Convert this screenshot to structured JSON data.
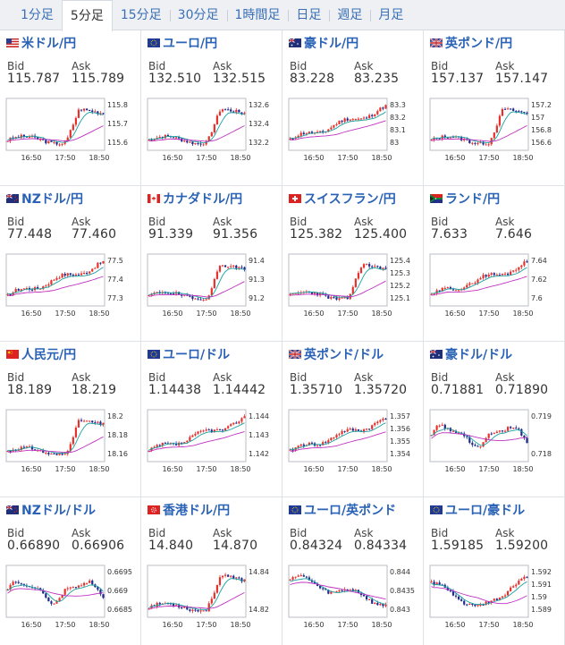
{
  "tabs": [
    {
      "label": "1分足"
    },
    {
      "label": "5分足"
    },
    {
      "label": "15分足"
    },
    {
      "label": "30分足"
    },
    {
      "label": "1時間足"
    },
    {
      "label": "日足"
    },
    {
      "label": "週足"
    },
    {
      "label": "月足"
    }
  ],
  "active_tab": "5分足",
  "labels": {
    "bid": "Bid",
    "ask": "Ask"
  },
  "x_ticks": [
    "16:50",
    "17:50",
    "18:50"
  ],
  "colors": {
    "up": "#e8312c",
    "down": "#1e2a8c",
    "ma_fast": "#1aa0a0",
    "ma_slow": "#c030c0",
    "title": "#2a62b5"
  },
  "pairs": [
    {
      "name": "米ドル/円",
      "flag": "us",
      "bid": "115.787",
      "ask": "115.789",
      "yticks": [
        "115.8",
        "115.7",
        "115.6"
      ],
      "shape": "rise_late",
      "seed": 3
    },
    {
      "name": "ユーロ/円",
      "flag": "eu",
      "bid": "132.510",
      "ask": "132.515",
      "yticks": [
        "132.6",
        "132.4",
        "132.2"
      ],
      "shape": "rise_late",
      "seed": 7
    },
    {
      "name": "豪ドル/円",
      "flag": "au",
      "bid": "83.228",
      "ask": "83.235",
      "yticks": [
        "83.3",
        "83.2",
        "83.1",
        "83"
      ],
      "shape": "steady_rise",
      "seed": 11
    },
    {
      "name": "英ポンド/円",
      "flag": "gb",
      "bid": "157.137",
      "ask": "157.147",
      "yticks": [
        "157.2",
        "157",
        "156.8",
        "156.6"
      ],
      "shape": "rise_late",
      "seed": 13
    },
    {
      "name": "NZドル/円",
      "flag": "nz",
      "bid": "77.448",
      "ask": "77.460",
      "yticks": [
        "77.5",
        "77.4",
        "77.3"
      ],
      "shape": "steady_rise",
      "seed": 17
    },
    {
      "name": "カナダドル/円",
      "flag": "ca",
      "bid": "91.339",
      "ask": "91.356",
      "yticks": [
        "91.4",
        "91.3",
        "91.2"
      ],
      "shape": "rise_late",
      "seed": 19
    },
    {
      "name": "スイスフラン/円",
      "flag": "ch",
      "bid": "125.382",
      "ask": "125.400",
      "yticks": [
        "125.4",
        "125.3",
        "125.2",
        "125.1"
      ],
      "shape": "rise_late",
      "seed": 23
    },
    {
      "name": "ランド/円",
      "flag": "za",
      "bid": "7.633",
      "ask": "7.646",
      "yticks": [
        "7.64",
        "7.62",
        "7.6"
      ],
      "shape": "steady_rise",
      "seed": 29
    },
    {
      "name": "人民元/円",
      "flag": "cn",
      "bid": "18.189",
      "ask": "18.219",
      "yticks": [
        "18.2",
        "18.18",
        "18.16"
      ],
      "shape": "rise_late",
      "seed": 31
    },
    {
      "name": "ユーロ/ドル",
      "flag": "eu",
      "bid": "1.14438",
      "ask": "1.14442",
      "yticks": [
        "1.144",
        "1.143",
        "1.142"
      ],
      "shape": "steady_rise",
      "seed": 37
    },
    {
      "name": "英ポンド/ドル",
      "flag": "gb",
      "bid": "1.35710",
      "ask": "1.35720",
      "yticks": [
        "1.357",
        "1.356",
        "1.355",
        "1.354"
      ],
      "shape": "steady_rise",
      "seed": 41
    },
    {
      "name": "豪ドル/ドル",
      "flag": "au",
      "bid": "0.71881",
      "ask": "0.71890",
      "yticks": [
        "0.719",
        "0.718"
      ],
      "shape": "choppy",
      "seed": 43
    },
    {
      "name": "NZドル/ドル",
      "flag": "nz",
      "bid": "0.66890",
      "ask": "0.66906",
      "yticks": [
        "0.6695",
        "0.669",
        "0.6685"
      ],
      "shape": "choppy",
      "seed": 47
    },
    {
      "name": "香港ドル/円",
      "flag": "hk",
      "bid": "14.840",
      "ask": "14.870",
      "yticks": [
        "14.84",
        "14.82"
      ],
      "shape": "rise_late",
      "seed": 53
    },
    {
      "name": "ユーロ/英ポンド",
      "flag": "eu",
      "bid": "0.84324",
      "ask": "0.84334",
      "yticks": [
        "0.844",
        "0.8435",
        "0.843"
      ],
      "shape": "fall",
      "seed": 59
    },
    {
      "name": "ユーロ/豪ドル",
      "flag": "eu",
      "bid": "1.59185",
      "ask": "1.59200",
      "yticks": [
        "1.592",
        "1.591",
        "1.59",
        "1.589"
      ],
      "shape": "dip_recover",
      "seed": 61
    }
  ]
}
